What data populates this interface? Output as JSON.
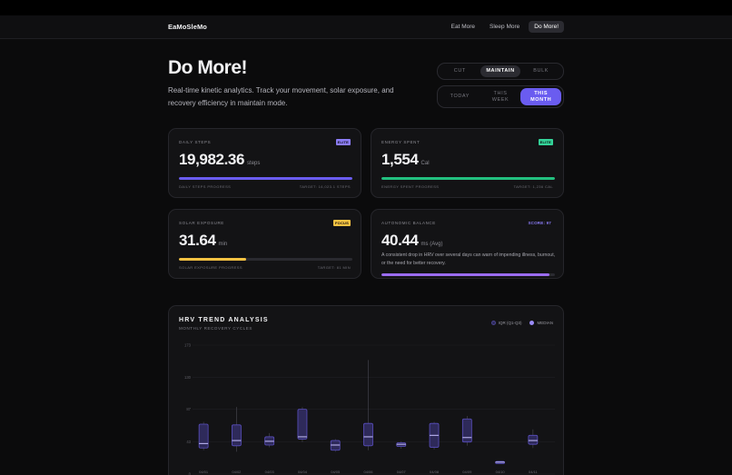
{
  "nav": {
    "brand": "EaMoSleMo",
    "links": [
      {
        "label": "Eat More",
        "active": false
      },
      {
        "label": "Sleep More",
        "active": false
      },
      {
        "label": "Do More!",
        "active": true
      }
    ]
  },
  "hero": {
    "title": "Do More!",
    "subtitle": "Real-time kinetic analytics. Track your movement, solar exposure, and recovery efficiency in maintain mode."
  },
  "mode_selector": {
    "options": [
      "CUT",
      "MAINTAIN",
      "BULK"
    ],
    "selected": "MAINTAIN"
  },
  "period_selector": {
    "options": [
      "TODAY",
      "THIS WEEK",
      "THIS MONTH"
    ],
    "selected": "THIS MONTH"
  },
  "metrics": [
    {
      "label": "DAILY STEPS",
      "badge": "ELITE",
      "badge_color": "#8b7cf6",
      "value": "19,982.36",
      "unit": "steps",
      "progress": 1.0,
      "bar_color": "#6a5cf0",
      "progress_label": "DAILY STEPS PROGRESS",
      "target_label": "TARGET: 16,023.1 STEPS"
    },
    {
      "label": "ENERGY SPENT",
      "badge": "ELITE",
      "badge_color": "#34d399",
      "value": "1,554",
      "unit": "Cal",
      "progress": 1.0,
      "bar_color": "#22c07f",
      "progress_label": "ENERGY SPENT PROGRESS",
      "target_label": "TARGET: 1,236 CAL"
    },
    {
      "label": "SOLAR EXPOSURE",
      "badge": "FOCUS",
      "badge_color": "#f5c242",
      "value": "31.64",
      "unit": "min",
      "progress": 0.39,
      "bar_color": "#f5c242",
      "progress_label": "SOLAR EXPOSURE PROGRESS",
      "target_label": "TARGET: 81 MIN"
    }
  ],
  "hrv_card": {
    "label": "AUTONOMIC BALANCE",
    "score": "SCORE: 97",
    "score_color": "#8b7cf6",
    "value": "40.44",
    "unit": "ms (Avg)",
    "note": "A consistent drop in HRV over several days can warn of impending illness, burnout, or the need for better recovery.",
    "progress": 0.97,
    "bar_color": "#9b6cf0"
  },
  "chart_section": {
    "title": "HRV TREND ANALYSIS",
    "subtitle": "MONTHLY RECOVERY CYCLES",
    "legend": [
      {
        "label": "IQR (Q1-Q3)",
        "color": "#2e2a5a"
      },
      {
        "label": "MEDIAN",
        "color": "#9b8cf8"
      }
    ]
  },
  "chart_data": {
    "type": "boxplot",
    "title": "HRV TREND ANALYSIS",
    "subtitle": "MONTHLY RECOVERY CYCLES",
    "y_ticks": [
      0,
      43,
      87,
      130,
      173
    ],
    "ylim": [
      0,
      173
    ],
    "grid": true,
    "legend_position": "top-right",
    "categories": [
      "04/01",
      "04/02",
      "04/03",
      "04/04",
      "04/05",
      "04/06",
      "04/07",
      "04/08",
      "04/09",
      "04/10",
      "04/11"
    ],
    "series": [
      {
        "name": "IQR (Q1-Q3)",
        "values": [
          [
            35,
            67
          ],
          [
            38,
            66
          ],
          [
            39,
            50
          ],
          [
            47,
            87
          ],
          [
            32,
            45
          ],
          [
            38,
            68
          ],
          [
            37,
            42
          ],
          [
            36,
            68
          ],
          [
            43,
            74
          ],
          [
            14,
            17
          ],
          [
            40,
            52
          ]
        ]
      },
      {
        "name": "MEDIAN",
        "values": [
          41,
          45,
          44,
          50,
          39,
          50,
          40,
          52,
          49,
          16,
          45
        ]
      }
    ],
    "whiskers": [
      [
        32,
        70
      ],
      [
        30,
        90
      ],
      [
        36,
        55
      ],
      [
        43,
        90
      ],
      [
        30,
        47
      ],
      [
        32,
        153
      ],
      [
        34,
        44
      ],
      [
        33,
        70
      ],
      [
        38,
        78
      ],
      [
        14,
        17
      ],
      [
        35,
        60
      ]
    ]
  }
}
